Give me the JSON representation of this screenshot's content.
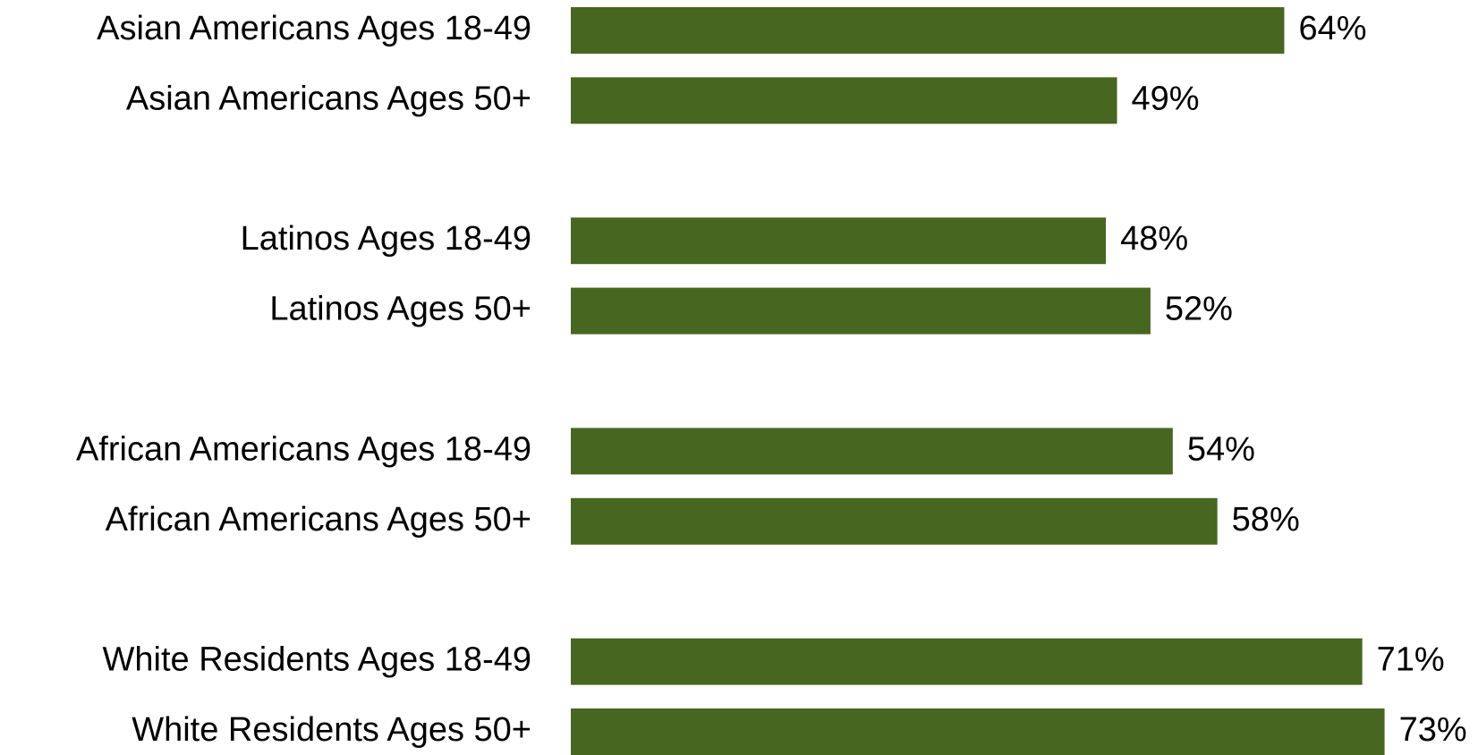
{
  "chart_data": {
    "type": "hbar",
    "categories": [
      "Asian Americans Ages 18-49",
      "Asian Americans Ages 50+",
      "Latinos Ages 18-49",
      "Latinos Ages 50+",
      "African Americans Ages 18-49",
      "African Americans Ages 50+",
      "White Residents Ages 18-49",
      "White Residents Ages 50+"
    ],
    "values": [
      64,
      49,
      48,
      52,
      54,
      58,
      71,
      73
    ],
    "value_labels": [
      "64%",
      "49%",
      "48%",
      "52%",
      "54%",
      "58%",
      "71%",
      "73%"
    ],
    "color": "#47661f",
    "xlim": [
      0,
      100
    ]
  }
}
